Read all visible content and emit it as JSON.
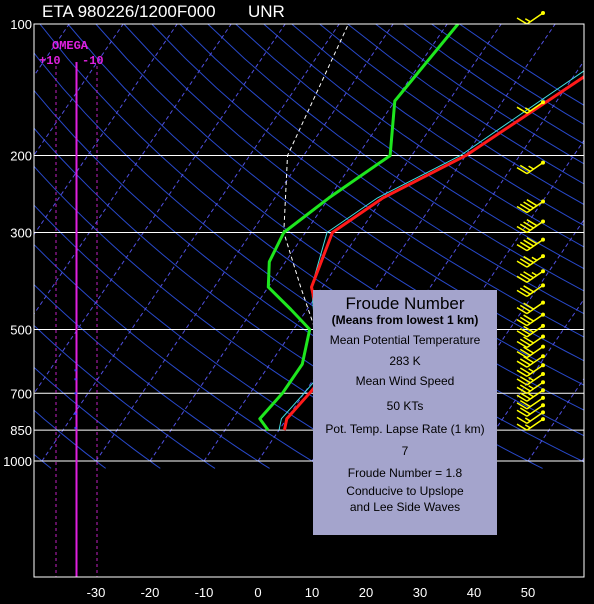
{
  "header": {
    "title": "ETA 980226/1200F000",
    "source": "UNR"
  },
  "omega": {
    "label": "OMEGA",
    "plus": "+10",
    "minus": "-10"
  },
  "colors": {
    "background": "#000000",
    "isobar": "#ffffff",
    "isotherm": "#5050e0",
    "dry_adiabat": "#2848c8",
    "temperature": "#ff1a1a",
    "dewpoint": "#1ee61e",
    "virtual_temperature": "#40e0e0",
    "parcel": "#ffffff",
    "omega_line": "#e020e0",
    "omega_guide": "#c020c0",
    "omega_bars": "#4040ff",
    "wind_barbs": "#ffff00",
    "info_box": "#a4a4cc"
  },
  "info_box": {
    "title": "Froude Number",
    "subtitle": "(Means from lowest 1 km)",
    "lines": [
      "Mean Potential Temperature",
      "283  K",
      "Mean Wind Speed",
      "50 KTs",
      "Pot. Temp. Lapse Rate (1 km)",
      "7",
      "Froude Number = 1.8",
      "Conducive to Upslope",
      "and Lee Side Waves"
    ]
  },
  "chart_data": {
    "type": "line",
    "diagram": "skew-T log-P",
    "title": "ETA 980226/1200F000",
    "pressure_levels": [
      100,
      200,
      300,
      500,
      700,
      850,
      1000
    ],
    "temperature_ticks": [
      -30,
      -20,
      -10,
      0,
      10,
      20,
      30,
      40,
      50
    ],
    "series": [
      {
        "name": "Temperature",
        "points": [
          [
            100,
            20
          ],
          [
            200,
            0
          ],
          [
            250,
            -10
          ],
          [
            300,
            -15
          ],
          [
            400,
            -12
          ],
          [
            500,
            -5
          ],
          [
            600,
            2
          ],
          [
            700,
            1
          ],
          [
            800,
            0
          ],
          [
            850,
            1
          ]
        ]
      },
      {
        "name": "Dew point",
        "points": [
          [
            100,
            -18
          ],
          [
            150,
            -20
          ],
          [
            200,
            -14
          ],
          [
            250,
            -20
          ],
          [
            300,
            -24
          ],
          [
            350,
            -23
          ],
          [
            400,
            -20
          ],
          [
            450,
            -13
          ],
          [
            500,
            -7
          ],
          [
            600,
            -4
          ],
          [
            700,
            -4
          ],
          [
            800,
            -5
          ],
          [
            850,
            -2
          ]
        ]
      },
      {
        "name": "Virtual temperature",
        "points": [
          [
            100,
            18
          ],
          [
            200,
            -1
          ],
          [
            250,
            -11
          ],
          [
            300,
            -16
          ],
          [
            400,
            -12
          ],
          [
            500,
            -6
          ],
          [
            600,
            1
          ],
          [
            700,
            0
          ],
          [
            800,
            -1
          ],
          [
            850,
            0
          ]
        ]
      },
      {
        "name": "Parcel",
        "points": [
          [
            80,
            -40
          ],
          [
            200,
            -33
          ],
          [
            300,
            -24
          ],
          [
            400,
            -14
          ],
          [
            500,
            -6
          ]
        ]
      }
    ],
    "omega": {
      "xlim": [
        10,
        -10
      ],
      "markers": [
        [
          620,
          1
        ],
        [
          650,
          1
        ],
        [
          700,
          1
        ],
        [
          780,
          1
        ],
        [
          840,
          1
        ]
      ]
    },
    "wind_barbs": [
      {
        "p": 100,
        "knots": 15
      },
      {
        "p": 160,
        "knots": 15
      },
      {
        "p": 220,
        "knots": 25
      },
      {
        "p": 270,
        "knots": 40
      },
      {
        "p": 300,
        "knots": 40
      },
      {
        "p": 330,
        "knots": 40
      },
      {
        "p": 360,
        "knots": 35
      },
      {
        "p": 390,
        "knots": 35
      },
      {
        "p": 420,
        "knots": 30
      },
      {
        "p": 460,
        "knots": 30
      },
      {
        "p": 490,
        "knots": 30
      },
      {
        "p": 520,
        "knots": 30
      },
      {
        "p": 550,
        "knots": 30
      },
      {
        "p": 580,
        "knots": 30
      },
      {
        "p": 610,
        "knots": 30
      },
      {
        "p": 640,
        "knots": 25
      },
      {
        "p": 670,
        "knots": 25
      },
      {
        "p": 700,
        "knots": 25
      },
      {
        "p": 730,
        "knots": 25
      },
      {
        "p": 760,
        "knots": 20
      },
      {
        "p": 790,
        "knots": 20
      },
      {
        "p": 820,
        "knots": 15
      },
      {
        "p": 850,
        "knots": 15
      }
    ]
  }
}
